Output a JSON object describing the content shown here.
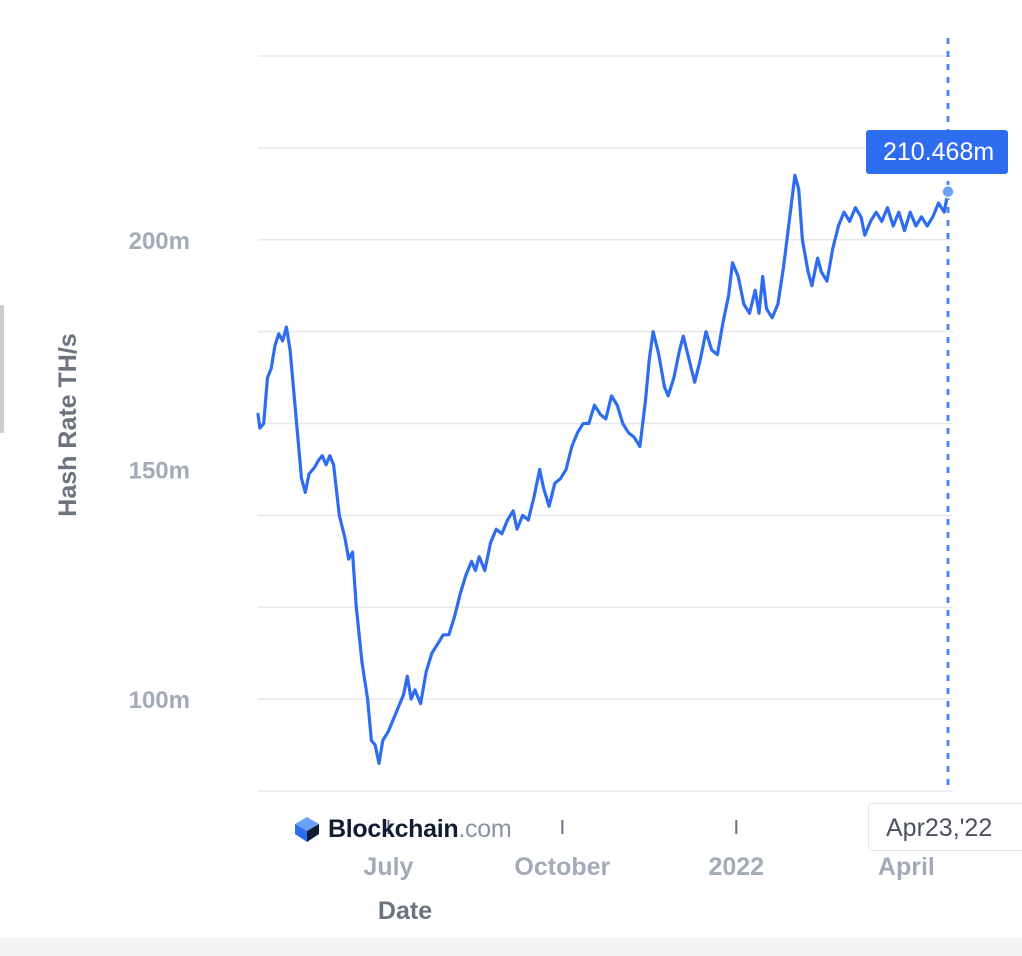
{
  "chart_data": {
    "type": "line",
    "title": "",
    "xlabel": "Date",
    "ylabel": "Hash Rate TH/s",
    "unit_suffix": "m",
    "y_ticks": [
      {
        "value": 100,
        "label": "100m"
      },
      {
        "value": 150,
        "label": "150m"
      },
      {
        "value": 200,
        "label": "200m"
      }
    ],
    "x_ticks": [
      {
        "x": "2021-07-01",
        "label": "July"
      },
      {
        "x": "2021-10-01",
        "label": "October"
      },
      {
        "x": "2022-01-01",
        "label": "2022"
      },
      {
        "x": "2022-04-01",
        "label": "April"
      }
    ],
    "xlim": [
      "2021-04-23",
      "2022-04-23"
    ],
    "ylim": [
      80,
      240
    ],
    "grid": true,
    "series": [
      {
        "color": "#2f6df0",
        "points": [
          [
            "2021-04-23",
            162.0
          ],
          [
            "2021-04-24",
            159.0
          ],
          [
            "2021-04-26",
            160.0
          ],
          [
            "2021-04-28",
            170.0
          ],
          [
            "2021-04-30",
            172.0
          ],
          [
            "2021-05-02",
            177.0
          ],
          [
            "2021-05-04",
            179.5
          ],
          [
            "2021-05-06",
            178.0
          ],
          [
            "2021-05-08",
            181.0
          ],
          [
            "2021-05-10",
            176.0
          ],
          [
            "2021-05-13",
            162.0
          ],
          [
            "2021-05-16",
            148.0
          ],
          [
            "2021-05-18",
            145.0
          ],
          [
            "2021-05-20",
            149.0
          ],
          [
            "2021-05-23",
            150.5
          ],
          [
            "2021-05-25",
            152.0
          ],
          [
            "2021-05-27",
            153.0
          ],
          [
            "2021-05-29",
            151.0
          ],
          [
            "2021-05-31",
            153.0
          ],
          [
            "2021-06-02",
            151.0
          ],
          [
            "2021-06-05",
            140.0
          ],
          [
            "2021-06-08",
            135.0
          ],
          [
            "2021-06-10",
            130.5
          ],
          [
            "2021-06-12",
            132.0
          ],
          [
            "2021-06-14",
            120.0
          ],
          [
            "2021-06-17",
            108.0
          ],
          [
            "2021-06-20",
            100.0
          ],
          [
            "2021-06-22",
            91.0
          ],
          [
            "2021-06-24",
            90.0
          ],
          [
            "2021-06-26",
            86.0
          ],
          [
            "2021-06-28",
            91.0
          ],
          [
            "2021-07-01",
            93.0
          ],
          [
            "2021-07-04",
            96.0
          ],
          [
            "2021-07-07",
            99.0
          ],
          [
            "2021-07-09",
            101.0
          ],
          [
            "2021-07-11",
            105.0
          ],
          [
            "2021-07-13",
            100.0
          ],
          [
            "2021-07-15",
            102.0
          ],
          [
            "2021-07-18",
            99.0
          ],
          [
            "2021-07-21",
            106.0
          ],
          [
            "2021-07-24",
            110.0
          ],
          [
            "2021-07-27",
            112.0
          ],
          [
            "2021-07-30",
            114.0
          ],
          [
            "2021-08-02",
            114.0
          ],
          [
            "2021-08-05",
            118.0
          ],
          [
            "2021-08-08",
            123.0
          ],
          [
            "2021-08-11",
            127.0
          ],
          [
            "2021-08-14",
            130.0
          ],
          [
            "2021-08-16",
            128.0
          ],
          [
            "2021-08-18",
            131.0
          ],
          [
            "2021-08-21",
            128.0
          ],
          [
            "2021-08-24",
            134.0
          ],
          [
            "2021-08-27",
            137.0
          ],
          [
            "2021-08-30",
            136.0
          ],
          [
            "2021-09-02",
            139.0
          ],
          [
            "2021-09-05",
            141.0
          ],
          [
            "2021-09-07",
            137.0
          ],
          [
            "2021-09-10",
            140.0
          ],
          [
            "2021-09-13",
            139.0
          ],
          [
            "2021-09-16",
            144.0
          ],
          [
            "2021-09-19",
            150.0
          ],
          [
            "2021-09-21",
            146.0
          ],
          [
            "2021-09-24",
            142.0
          ],
          [
            "2021-09-27",
            147.0
          ],
          [
            "2021-09-30",
            148.0
          ],
          [
            "2021-10-03",
            150.0
          ],
          [
            "2021-10-06",
            155.0
          ],
          [
            "2021-10-09",
            158.0
          ],
          [
            "2021-10-12",
            160.0
          ],
          [
            "2021-10-15",
            160.0
          ],
          [
            "2021-10-18",
            164.0
          ],
          [
            "2021-10-21",
            162.0
          ],
          [
            "2021-10-24",
            161.0
          ],
          [
            "2021-10-27",
            166.0
          ],
          [
            "2021-10-30",
            164.0
          ],
          [
            "2021-11-02",
            160.0
          ],
          [
            "2021-11-05",
            158.0
          ],
          [
            "2021-11-08",
            157.0
          ],
          [
            "2021-11-11",
            155.0
          ],
          [
            "2021-11-14",
            165.0
          ],
          [
            "2021-11-16",
            174.0
          ],
          [
            "2021-11-18",
            180.0
          ],
          [
            "2021-11-21",
            175.0
          ],
          [
            "2021-11-24",
            168.0
          ],
          [
            "2021-11-26",
            166.0
          ],
          [
            "2021-11-29",
            170.0
          ],
          [
            "2021-12-02",
            176.0
          ],
          [
            "2021-12-04",
            179.0
          ],
          [
            "2021-12-07",
            174.0
          ],
          [
            "2021-12-10",
            169.0
          ],
          [
            "2021-12-13",
            174.0
          ],
          [
            "2021-12-16",
            180.0
          ],
          [
            "2021-12-19",
            176.0
          ],
          [
            "2021-12-22",
            175.0
          ],
          [
            "2021-12-25",
            182.0
          ],
          [
            "2021-12-28",
            188.0
          ],
          [
            "2021-12-30",
            195.0
          ],
          [
            "2022-01-02",
            192.0
          ],
          [
            "2022-01-05",
            186.0
          ],
          [
            "2022-01-08",
            184.0
          ],
          [
            "2022-01-11",
            189.0
          ],
          [
            "2022-01-13",
            184.0
          ],
          [
            "2022-01-15",
            192.0
          ],
          [
            "2022-01-17",
            185.0
          ],
          [
            "2022-01-20",
            183.0
          ],
          [
            "2022-01-23",
            186.0
          ],
          [
            "2022-01-26",
            194.0
          ],
          [
            "2022-01-29",
            204.0
          ],
          [
            "2022-02-01",
            214.0
          ],
          [
            "2022-02-03",
            211.0
          ],
          [
            "2022-02-05",
            200.0
          ],
          [
            "2022-02-08",
            193.0
          ],
          [
            "2022-02-10",
            190.0
          ],
          [
            "2022-02-13",
            196.0
          ],
          [
            "2022-02-15",
            193.0
          ],
          [
            "2022-02-18",
            191.0
          ],
          [
            "2022-02-21",
            198.0
          ],
          [
            "2022-02-24",
            203.0
          ],
          [
            "2022-02-27",
            206.0
          ],
          [
            "2022-03-02",
            204.0
          ],
          [
            "2022-03-05",
            207.0
          ],
          [
            "2022-03-08",
            205.0
          ],
          [
            "2022-03-10",
            201.0
          ],
          [
            "2022-03-13",
            204.0
          ],
          [
            "2022-03-16",
            206.0
          ],
          [
            "2022-03-19",
            204.0
          ],
          [
            "2022-03-22",
            207.0
          ],
          [
            "2022-03-25",
            203.0
          ],
          [
            "2022-03-28",
            206.0
          ],
          [
            "2022-03-31",
            202.0
          ],
          [
            "2022-04-03",
            206.0
          ],
          [
            "2022-04-06",
            203.0
          ],
          [
            "2022-04-09",
            205.0
          ],
          [
            "2022-04-12",
            203.0
          ],
          [
            "2022-04-15",
            205.0
          ],
          [
            "2022-04-18",
            208.0
          ],
          [
            "2022-04-21",
            206.0
          ],
          [
            "2022-04-23",
            210.468
          ]
        ]
      }
    ],
    "hover": {
      "date_label": "Apr23,'22",
      "value_label": "210.468m",
      "x": "2022-04-23",
      "y": 210.468
    },
    "watermark": {
      "name": "Blockchain",
      "tld": ".com"
    }
  }
}
